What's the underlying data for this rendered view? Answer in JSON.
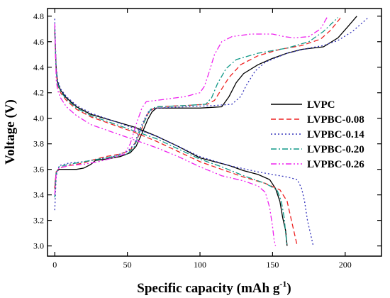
{
  "chart_data": {
    "type": "line",
    "xlabel": "Specific capacity (mAh g",
    "xlabel_sup": "-1",
    "xlabel_end": ")",
    "ylabel": "Voltage (V)",
    "xlim": [
      -5,
      225
    ],
    "ylim": [
      2.92,
      4.86
    ],
    "xticks": [
      0,
      50,
      100,
      150,
      200
    ],
    "yticks": [
      3.0,
      3.2,
      3.4,
      3.6,
      3.8,
      4.0,
      4.2,
      4.4,
      4.6,
      4.8
    ],
    "xtick_labels": [
      "0",
      "50",
      "100",
      "150",
      "200"
    ],
    "ytick_labels": [
      "3.0",
      "3.2",
      "3.4",
      "3.6",
      "3.8",
      "4.0",
      "4.2",
      "4.4",
      "4.6",
      "4.8"
    ],
    "grid": false,
    "legend_position": "right-middle",
    "series": [
      {
        "name": "LVPC",
        "color": "#000000",
        "dash": "solid",
        "charge": [
          [
            0,
            3.45
          ],
          [
            1,
            3.58
          ],
          [
            3,
            3.6
          ],
          [
            8,
            3.6
          ],
          [
            15,
            3.6
          ],
          [
            20,
            3.61
          ],
          [
            25,
            3.64
          ],
          [
            28,
            3.67
          ],
          [
            35,
            3.68
          ],
          [
            45,
            3.7
          ],
          [
            52,
            3.73
          ],
          [
            56,
            3.78
          ],
          [
            60,
            3.88
          ],
          [
            64,
            3.99
          ],
          [
            67,
            4.05
          ],
          [
            70,
            4.08
          ],
          [
            80,
            4.08
          ],
          [
            100,
            4.08
          ],
          [
            115,
            4.09
          ],
          [
            120,
            4.17
          ],
          [
            125,
            4.28
          ],
          [
            130,
            4.35
          ],
          [
            140,
            4.42
          ],
          [
            150,
            4.47
          ],
          [
            160,
            4.51
          ],
          [
            170,
            4.54
          ],
          [
            185,
            4.56
          ],
          [
            195,
            4.63
          ],
          [
            202,
            4.72
          ],
          [
            208,
            4.8
          ]
        ],
        "discharge": [
          [
            0,
            4.68
          ],
          [
            0.5,
            4.52
          ],
          [
            1,
            4.38
          ],
          [
            2,
            4.28
          ],
          [
            4,
            4.22
          ],
          [
            8,
            4.16
          ],
          [
            15,
            4.09
          ],
          [
            25,
            4.03
          ],
          [
            40,
            3.98
          ],
          [
            55,
            3.93
          ],
          [
            70,
            3.86
          ],
          [
            85,
            3.78
          ],
          [
            100,
            3.69
          ],
          [
            110,
            3.66
          ],
          [
            120,
            3.63
          ],
          [
            130,
            3.59
          ],
          [
            140,
            3.56
          ],
          [
            148,
            3.52
          ],
          [
            152,
            3.45
          ],
          [
            155,
            3.35
          ],
          [
            157,
            3.22
          ],
          [
            159,
            3.12
          ],
          [
            160,
            3.0
          ]
        ]
      },
      {
        "name": "LVPBC-0.08",
        "color": "#ee2222",
        "dash": "7,4",
        "charge": [
          [
            0,
            3.45
          ],
          [
            1,
            3.58
          ],
          [
            3,
            3.61
          ],
          [
            10,
            3.63
          ],
          [
            20,
            3.65
          ],
          [
            25,
            3.67
          ],
          [
            35,
            3.7
          ],
          [
            45,
            3.72
          ],
          [
            52,
            3.75
          ],
          [
            56,
            3.82
          ],
          [
            60,
            3.92
          ],
          [
            63,
            4.02
          ],
          [
            66,
            4.06
          ],
          [
            70,
            4.09
          ],
          [
            90,
            4.1
          ],
          [
            105,
            4.11
          ],
          [
            110,
            4.14
          ],
          [
            115,
            4.23
          ],
          [
            120,
            4.32
          ],
          [
            128,
            4.42
          ],
          [
            140,
            4.49
          ],
          [
            155,
            4.54
          ],
          [
            170,
            4.57
          ],
          [
            183,
            4.62
          ],
          [
            190,
            4.69
          ],
          [
            197,
            4.79
          ]
        ],
        "discharge": [
          [
            0,
            4.7
          ],
          [
            0.5,
            4.5
          ],
          [
            1,
            4.36
          ],
          [
            2,
            4.26
          ],
          [
            4,
            4.2
          ],
          [
            8,
            4.14
          ],
          [
            15,
            4.07
          ],
          [
            25,
            4.01
          ],
          [
            40,
            3.95
          ],
          [
            55,
            3.89
          ],
          [
            70,
            3.82
          ],
          [
            85,
            3.74
          ],
          [
            100,
            3.66
          ],
          [
            115,
            3.6
          ],
          [
            130,
            3.54
          ],
          [
            145,
            3.49
          ],
          [
            155,
            3.44
          ],
          [
            160,
            3.35
          ],
          [
            163,
            3.2
          ],
          [
            165,
            3.1
          ],
          [
            167,
            3.0
          ]
        ]
      },
      {
        "name": "LVPBC-0.14",
        "color": "#3333bb",
        "dash": "2,3",
        "charge": [
          [
            0,
            3.28
          ],
          [
            1,
            3.55
          ],
          [
            3,
            3.63
          ],
          [
            10,
            3.65
          ],
          [
            20,
            3.66
          ],
          [
            30,
            3.68
          ],
          [
            40,
            3.7
          ],
          [
            50,
            3.74
          ],
          [
            55,
            3.8
          ],
          [
            58,
            3.9
          ],
          [
            62,
            4.0
          ],
          [
            65,
            4.06
          ],
          [
            70,
            4.08
          ],
          [
            90,
            4.09
          ],
          [
            110,
            4.1
          ],
          [
            122,
            4.11
          ],
          [
            128,
            4.17
          ],
          [
            132,
            4.26
          ],
          [
            138,
            4.37
          ],
          [
            145,
            4.44
          ],
          [
            160,
            4.51
          ],
          [
            175,
            4.55
          ],
          [
            185,
            4.57
          ],
          [
            195,
            4.61
          ],
          [
            205,
            4.68
          ],
          [
            216,
            4.79
          ]
        ],
        "discharge": [
          [
            0,
            4.78
          ],
          [
            0.5,
            4.56
          ],
          [
            1,
            4.4
          ],
          [
            2,
            4.3
          ],
          [
            4,
            4.23
          ],
          [
            8,
            4.17
          ],
          [
            15,
            4.1
          ],
          [
            25,
            4.04
          ],
          [
            40,
            3.98
          ],
          [
            55,
            3.92
          ],
          [
            70,
            3.86
          ],
          [
            85,
            3.78
          ],
          [
            100,
            3.7
          ],
          [
            120,
            3.63
          ],
          [
            140,
            3.58
          ],
          [
            160,
            3.54
          ],
          [
            167,
            3.52
          ],
          [
            170,
            3.45
          ],
          [
            172,
            3.35
          ],
          [
            174,
            3.2
          ],
          [
            176,
            3.1
          ],
          [
            178,
            3.0
          ]
        ]
      },
      {
        "name": "LVPBC-0.20",
        "color": "#119988",
        "dash": "8,3,2,3",
        "charge": [
          [
            0,
            3.38
          ],
          [
            1,
            3.57
          ],
          [
            3,
            3.62
          ],
          [
            10,
            3.64
          ],
          [
            20,
            3.66
          ],
          [
            30,
            3.68
          ],
          [
            40,
            3.7
          ],
          [
            50,
            3.72
          ],
          [
            55,
            3.78
          ],
          [
            58,
            3.88
          ],
          [
            62,
            3.98
          ],
          [
            66,
            4.07
          ],
          [
            70,
            4.09
          ],
          [
            90,
            4.1
          ],
          [
            104,
            4.11
          ],
          [
            108,
            4.16
          ],
          [
            112,
            4.27
          ],
          [
            118,
            4.39
          ],
          [
            125,
            4.46
          ],
          [
            140,
            4.51
          ],
          [
            160,
            4.55
          ],
          [
            175,
            4.6
          ],
          [
            185,
            4.68
          ],
          [
            195,
            4.79
          ]
        ],
        "discharge": [
          [
            0,
            4.72
          ],
          [
            0.5,
            4.5
          ],
          [
            1,
            4.36
          ],
          [
            2,
            4.27
          ],
          [
            4,
            4.21
          ],
          [
            8,
            4.15
          ],
          [
            15,
            4.08
          ],
          [
            25,
            4.02
          ],
          [
            40,
            3.96
          ],
          [
            55,
            3.9
          ],
          [
            70,
            3.84
          ],
          [
            85,
            3.76
          ],
          [
            100,
            3.68
          ],
          [
            115,
            3.62
          ],
          [
            130,
            3.55
          ],
          [
            145,
            3.49
          ],
          [
            153,
            3.44
          ],
          [
            156,
            3.35
          ],
          [
            158,
            3.22
          ],
          [
            159,
            3.1
          ],
          [
            160,
            3.0
          ]
        ]
      },
      {
        "name": "LVPBC-0.26",
        "color": "#ee22ee",
        "dash": "8,3,2,3,2,3",
        "charge": [
          [
            0,
            3.4
          ],
          [
            1,
            3.57
          ],
          [
            3,
            3.61
          ],
          [
            10,
            3.63
          ],
          [
            20,
            3.64
          ],
          [
            30,
            3.66
          ],
          [
            40,
            3.69
          ],
          [
            48,
            3.72
          ],
          [
            52,
            3.8
          ],
          [
            56,
            3.95
          ],
          [
            60,
            4.08
          ],
          [
            63,
            4.13
          ],
          [
            70,
            4.14
          ],
          [
            90,
            4.17
          ],
          [
            100,
            4.2
          ],
          [
            103,
            4.25
          ],
          [
            106,
            4.35
          ],
          [
            110,
            4.5
          ],
          [
            115,
            4.6
          ],
          [
            122,
            4.64
          ],
          [
            135,
            4.66
          ],
          [
            150,
            4.66
          ],
          [
            158,
            4.64
          ],
          [
            165,
            4.63
          ],
          [
            175,
            4.64
          ],
          [
            183,
            4.7
          ],
          [
            188,
            4.8
          ]
        ],
        "discharge": [
          [
            0,
            4.74
          ],
          [
            0.5,
            4.5
          ],
          [
            1,
            4.3
          ],
          [
            2,
            4.22
          ],
          [
            4,
            4.16
          ],
          [
            8,
            4.09
          ],
          [
            15,
            4.02
          ],
          [
            25,
            3.95
          ],
          [
            40,
            3.89
          ],
          [
            55,
            3.83
          ],
          [
            70,
            3.77
          ],
          [
            85,
            3.7
          ],
          [
            100,
            3.62
          ],
          [
            115,
            3.55
          ],
          [
            130,
            3.51
          ],
          [
            140,
            3.47
          ],
          [
            145,
            3.42
          ],
          [
            148,
            3.3
          ],
          [
            150,
            3.15
          ],
          [
            151,
            3.05
          ],
          [
            152,
            3.0
          ]
        ]
      }
    ]
  }
}
